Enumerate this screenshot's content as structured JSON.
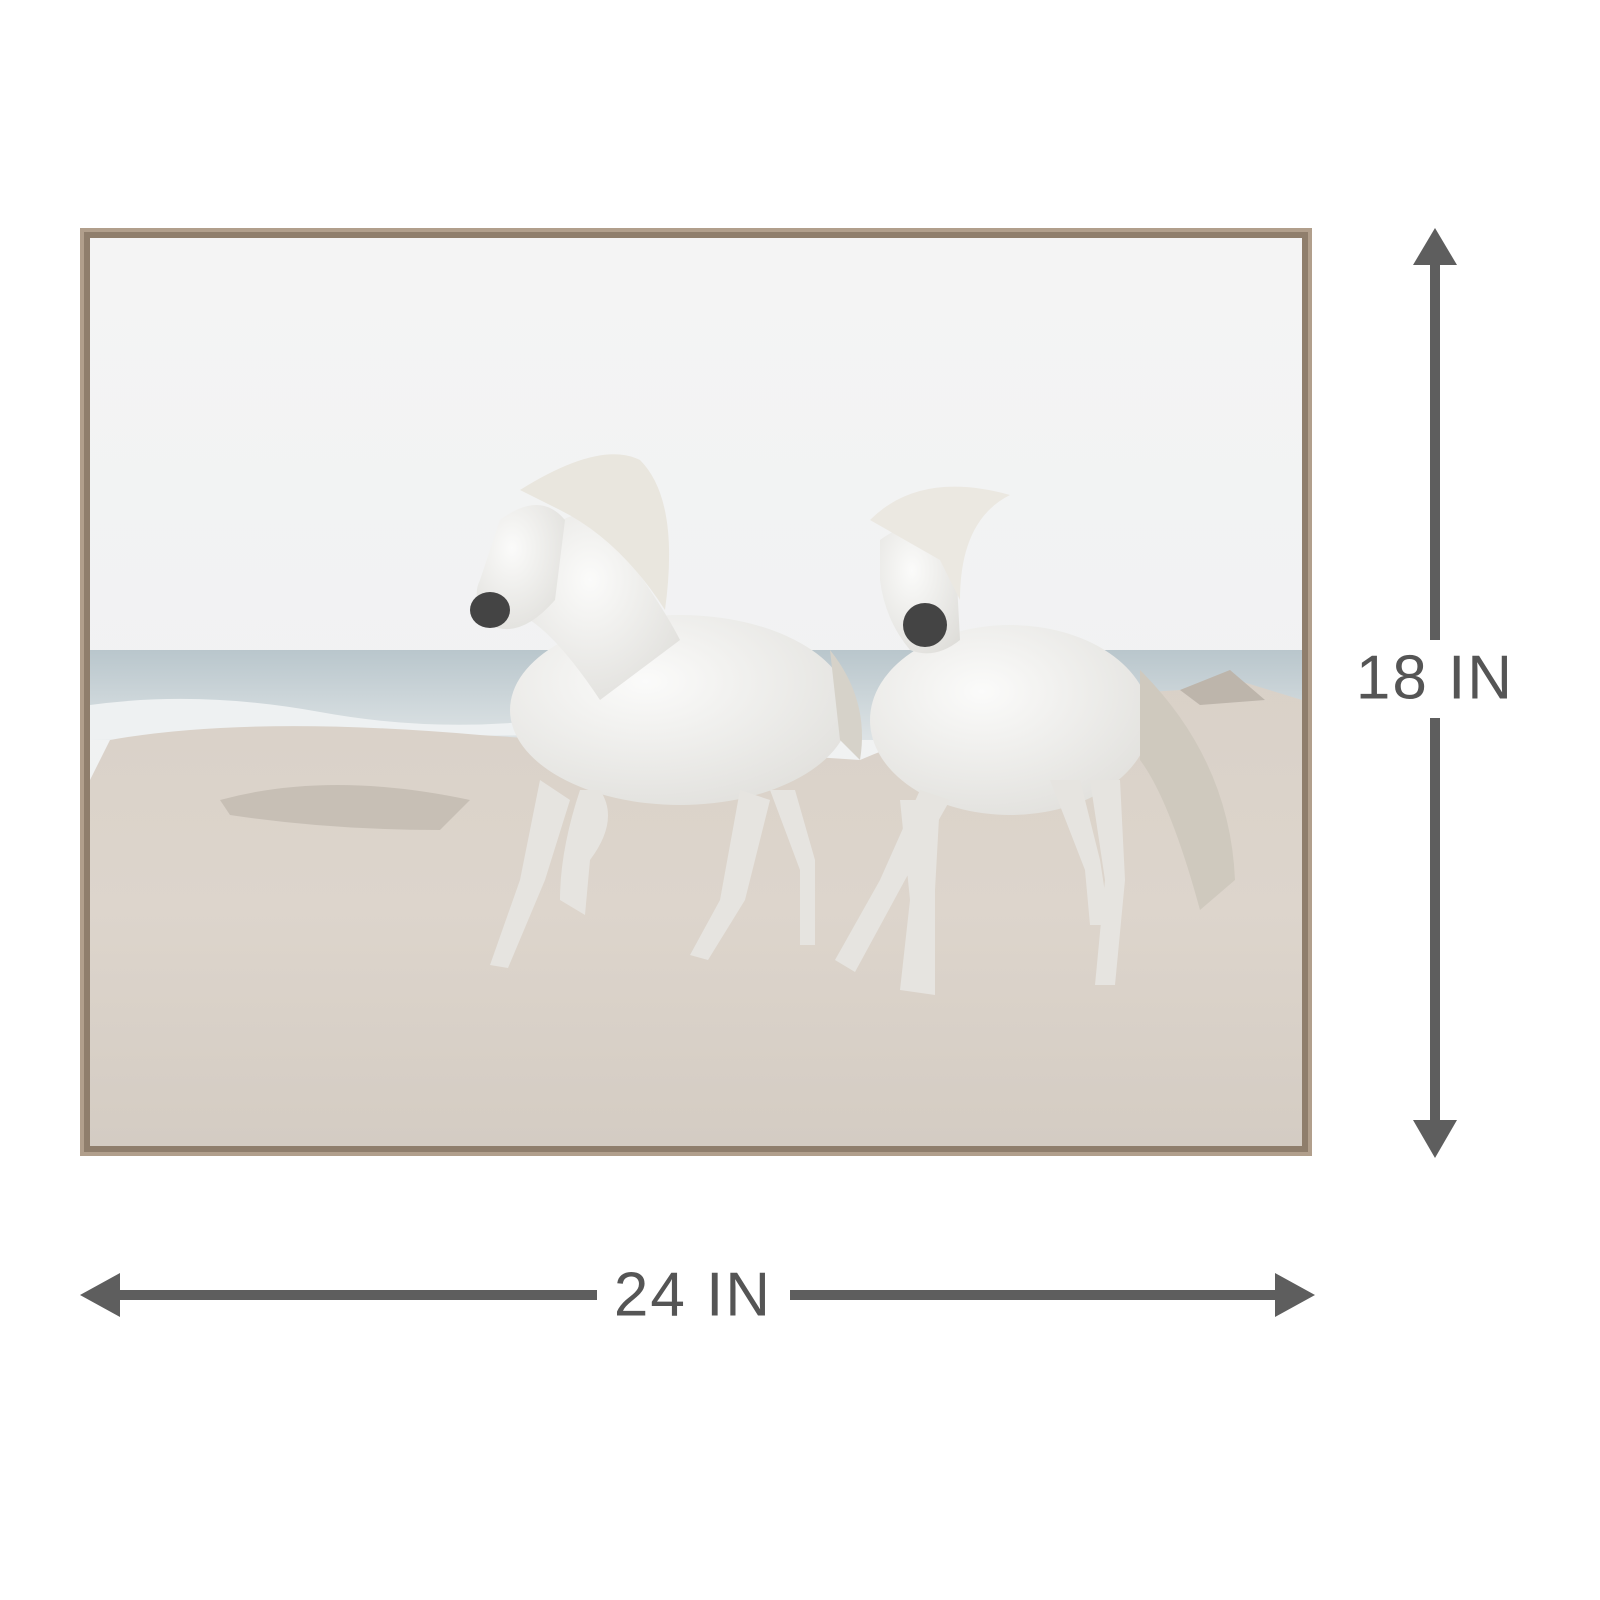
{
  "dimensions": {
    "height": "18 IN",
    "width": "24 IN"
  }
}
